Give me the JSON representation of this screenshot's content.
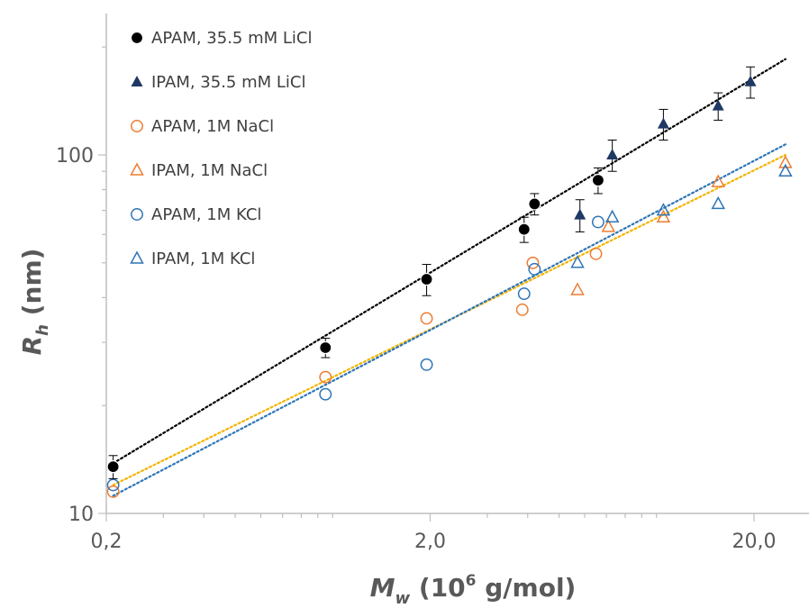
{
  "chart_data": {
    "type": "scatter",
    "x_scale": "log",
    "y_scale": "log",
    "xlim": [
      0.2,
      25
    ],
    "ylim": [
      10,
      250
    ],
    "x_ticks": [
      0.2,
      2.0,
      20.0
    ],
    "x_tick_labels": [
      "0,2",
      "2,0",
      "20,0"
    ],
    "y_ticks": [
      10,
      100
    ],
    "y_tick_labels": [
      "10",
      "100"
    ],
    "xlabel": {
      "main": "M",
      "sub": "w",
      "rest": " (10",
      "sup": "6",
      "tail": " g/mol)"
    },
    "ylabel": {
      "main": "R",
      "sub": "h",
      "rest": "  (nm)"
    },
    "grid": false,
    "legend_position": "top-left",
    "series": [
      {
        "name": "APAM, 35.5 mM LiCl",
        "marker": "filled-circle",
        "color": "#000000",
        "x": [
          0.21,
          0.95,
          1.95,
          3.9,
          4.2,
          6.6
        ],
        "y": [
          13.5,
          29,
          45,
          62,
          73,
          85
        ],
        "err": [
          1.0,
          1.8,
          4.5,
          5,
          5,
          7
        ]
      },
      {
        "name": "IPAM, 35.5 mM LiCl",
        "marker": "filled-triangle",
        "color": "#1f3864",
        "x": [
          5.8,
          7.3,
          10.5,
          15.5,
          19.5
        ],
        "y": [
          68,
          100,
          122,
          137,
          160
        ],
        "err": [
          7,
          10,
          12,
          12,
          16
        ]
      },
      {
        "name": "APAM, 1M NaCl",
        "marker": "open-circle",
        "color": "#ed7d31",
        "x": [
          0.21,
          0.95,
          1.95,
          3.85,
          4.15,
          6.5
        ],
        "y": [
          11.5,
          24,
          35,
          37,
          50,
          53
        ],
        "err": []
      },
      {
        "name": "IPAM, 1M NaCl",
        "marker": "open-triangle",
        "color": "#ed7d31",
        "x": [
          5.7,
          7.1,
          10.5,
          15.5,
          25
        ],
        "y": [
          42,
          63,
          67,
          84,
          95
        ],
        "err": []
      },
      {
        "name": "APAM, 1M KCl",
        "marker": "open-circle",
        "color": "#2e75b6",
        "x": [
          0.21,
          0.95,
          1.95,
          3.9,
          4.2,
          6.6
        ],
        "y": [
          12,
          21.5,
          26,
          41,
          48,
          65
        ],
        "err": []
      },
      {
        "name": "IPAM, 1M KCl",
        "marker": "open-triangle",
        "color": "#2e75b6",
        "x": [
          5.7,
          7.3,
          10.5,
          15.5,
          25
        ],
        "y": [
          50,
          67,
          70,
          73,
          90
        ],
        "err": []
      }
    ],
    "trendlines": [
      {
        "style": "dotted",
        "color": "#000000",
        "x": [
          0.21,
          25
        ],
        "y": [
          13.8,
          185
        ]
      },
      {
        "style": "dotted",
        "color": "#f4b400",
        "x": [
          0.21,
          25
        ],
        "y": [
          12.0,
          100
        ]
      },
      {
        "style": "dotted",
        "color": "#2e75b6",
        "x": [
          0.21,
          25
        ],
        "y": [
          11.2,
          107
        ]
      }
    ]
  }
}
